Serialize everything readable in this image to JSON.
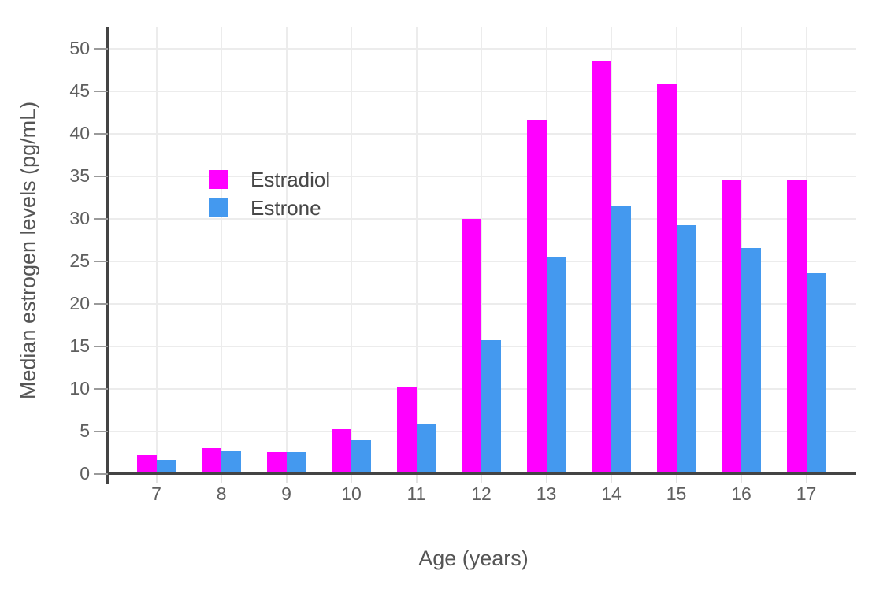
{
  "chart_data": {
    "type": "bar",
    "title": "",
    "xlabel": "Age (years)",
    "ylabel": "Median estrogen levels (pg/mL)",
    "categories": [
      "7",
      "8",
      "9",
      "10",
      "11",
      "12",
      "13",
      "14",
      "15",
      "16",
      "17"
    ],
    "series": [
      {
        "name": "Estradiol",
        "color": "#ff00ff",
        "values": [
          2.2,
          3.1,
          2.6,
          5.3,
          10.2,
          30.0,
          41.6,
          48.5,
          45.8,
          34.5,
          34.6
        ]
      },
      {
        "name": "Estrone",
        "color": "#4499ef",
        "values": [
          1.7,
          2.7,
          2.6,
          4.0,
          5.8,
          15.7,
          25.5,
          31.5,
          29.3,
          26.6,
          23.6
        ]
      }
    ],
    "ylim": [
      0,
      52.6
    ],
    "yticks": [
      0,
      5,
      10,
      15,
      20,
      25,
      30,
      35,
      40,
      45,
      50
    ],
    "grid": true,
    "legend_position": "upper-left-inside"
  },
  "colors": {
    "background": "#ffffff",
    "axis_line": "#444444",
    "gridline": "#ececec",
    "tick_label": "#5f5f5f",
    "axis_title": "#555555"
  }
}
